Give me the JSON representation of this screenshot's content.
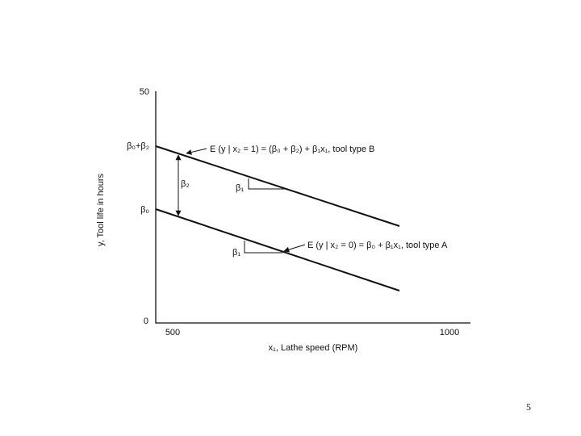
{
  "figure": {
    "y_axis": {
      "label": "y, Tool life in hours",
      "ticks": [
        "50",
        "β₀+β₂",
        "β₀",
        "0"
      ]
    },
    "x_axis": {
      "label": "x₁, Lathe speed (RPM)",
      "ticks": [
        "500",
        "1000"
      ]
    },
    "lines": [
      {
        "label": "E (y | x₂ = 1) = (β₀ + β₂) + β₁x₁, tool type B",
        "slope_label": "β₁"
      },
      {
        "label": "E (y | x₂ = 0) = β₀ + β₁x₁, tool type A",
        "slope_label": "β₁"
      }
    ],
    "gap_label": "β₂"
  },
  "slide_number": "5"
}
